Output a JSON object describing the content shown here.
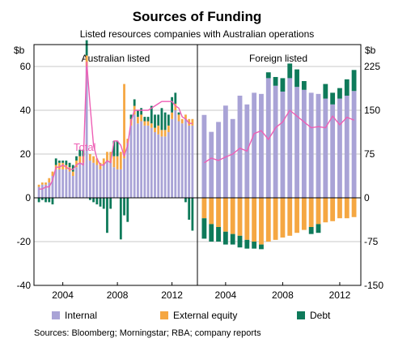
{
  "title": "Sources of Funding",
  "subtitle": "Listed resources companies with Australian operations",
  "source": "Sources: Bloomberg; Morningstar; RBA; company reports",
  "colors": {
    "internal": "#a9a3d6",
    "equity": "#f5a742",
    "debt": "#0e7a5a",
    "total": "#ee5fb5",
    "grid": "#b8b8b8",
    "frame": "#000000"
  },
  "chart_data": {
    "type": "bar",
    "stacked": true,
    "grid": true,
    "legend": "bottom",
    "legend_entries": [
      {
        "key": "internal",
        "label": "Internal"
      },
      {
        "key": "equity",
        "label": "External equity"
      },
      {
        "key": "debt",
        "label": "Debt"
      }
    ],
    "panels": [
      {
        "name": "Australian listed",
        "ylabel": "$b",
        "ylim": [
          -40,
          70
        ],
        "yticks": [
          -40,
          -20,
          0,
          20,
          40,
          60
        ],
        "x_ticks": [
          "2004",
          "2008",
          "2012"
        ],
        "x_tick_index": [
          7,
          23,
          39
        ],
        "line_label": "Total",
        "internal": [
          5,
          6,
          6,
          7,
          10,
          13,
          13,
          13,
          13,
          12,
          10,
          14,
          16,
          16,
          60,
          17,
          16,
          15,
          13,
          15,
          17,
          16,
          14,
          13,
          13,
          18,
          25,
          33,
          38,
          34,
          35,
          33,
          33,
          32,
          30,
          29,
          28,
          28,
          30,
          36,
          40,
          35,
          34,
          36,
          33,
          33
        ],
        "equity": [
          1,
          1,
          1,
          2,
          2,
          2,
          3,
          3,
          2,
          2,
          2,
          3,
          3,
          3,
          5,
          3,
          3,
          3,
          3,
          3,
          4,
          5,
          5,
          6,
          8,
          34,
          2,
          3,
          4,
          3,
          3,
          2,
          2,
          2,
          2,
          4,
          3,
          3,
          3,
          3,
          3,
          3,
          2,
          2,
          3,
          3
        ],
        "debt": [
          -2,
          -1,
          -2,
          -2,
          -3,
          3,
          1,
          1,
          2,
          2,
          3,
          2,
          3,
          3,
          7,
          -1,
          -2,
          -3,
          -4,
          -5,
          -16,
          -5,
          7,
          7,
          -19,
          -8,
          -11,
          2,
          3,
          3,
          3,
          2,
          2,
          8,
          6,
          5,
          10,
          8,
          5,
          7,
          5,
          1,
          0,
          -2,
          -10,
          -15
        ],
        "total": [
          4,
          4,
          5,
          5,
          8,
          14,
          14,
          15,
          14,
          13,
          13,
          15,
          16,
          15,
          62,
          42,
          24,
          18,
          15,
          15,
          17,
          16,
          26,
          26,
          24,
          19,
          24,
          35,
          40,
          40,
          40,
          40,
          40,
          41,
          42,
          43,
          44,
          44,
          44,
          44,
          42,
          41,
          37,
          36,
          34,
          34
        ]
      },
      {
        "name": "Foreign listed",
        "ylabel": "$b",
        "ylim": [
          -150,
          262.5
        ],
        "yticks": [
          -150,
          -75,
          0,
          75,
          150,
          225
        ],
        "x_ticks": [
          "2004",
          "2008",
          "2012"
        ],
        "x_tick_index": [
          3,
          11,
          19
        ],
        "internal": [
          142,
          113,
          130,
          158,
          135,
          175,
          160,
          180,
          178,
          205,
          192,
          182,
          205,
          190,
          185,
          180,
          178,
          170,
          160,
          170,
          175,
          183
        ],
        "equity": [
          -35,
          -45,
          -50,
          -58,
          -62,
          -65,
          -72,
          -75,
          -80,
          -75,
          -72,
          -68,
          -65,
          -60,
          -55,
          -50,
          -45,
          -42,
          -40,
          -35,
          -35,
          -33
        ],
        "debt": [
          -35,
          -30,
          -25,
          -22,
          -18,
          -20,
          -15,
          -12,
          -8,
          10,
          15,
          23,
          25,
          30,
          15,
          -12,
          -15,
          25,
          20,
          18,
          28,
          36
        ],
        "total": [
          60,
          68,
          64,
          70,
          75,
          85,
          80,
          110,
          115,
          100,
          120,
          130,
          150,
          140,
          130,
          120,
          122,
          120,
          140,
          125,
          138,
          133
        ]
      }
    ]
  }
}
